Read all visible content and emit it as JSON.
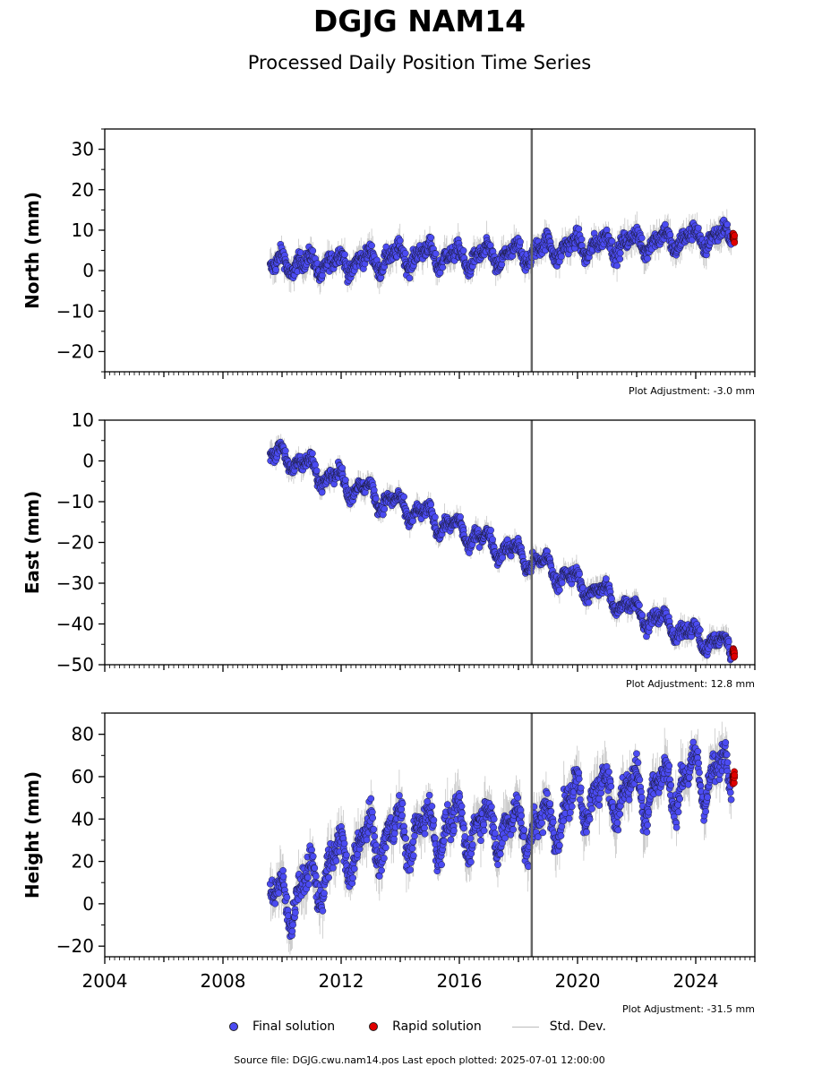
{
  "title": "DGJG NAM14",
  "subtitle": "Processed Daily Position Time Series",
  "colors": {
    "final": "#4b4bf2",
    "rapid": "#e00000",
    "std": "#bbbbbb",
    "event_line": "#666666"
  },
  "legend": {
    "final": "Final solution",
    "rapid": "Rapid solution",
    "std": "Std. Dev."
  },
  "footer": "Source file: DGJG.cwu.nam14.pos  Last epoch plotted: 2025-07-01 12:00:00",
  "chart_data": [
    {
      "type": "scatter",
      "ylabel": "North (mm)",
      "ylim": [
        -25,
        35
      ],
      "yticks": [
        -20,
        -10,
        0,
        10,
        20,
        30
      ],
      "xlim": [
        2004,
        2026
      ],
      "xticks": [
        2004,
        2008,
        2012,
        2016,
        2020,
        2024
      ],
      "show_xtick_labels": false,
      "adjustment": "Plot Adjustment: -3.0 mm",
      "event_line_x": 2018.45,
      "series": [
        {
          "name": "Final solution",
          "x": [
            2009.6,
            2010,
            2011,
            2012,
            2013,
            2014,
            2015,
            2016,
            2017,
            2018,
            2019,
            2020,
            2021,
            2022,
            2023,
            2024,
            2025.2
          ],
          "y": [
            0,
            2,
            1.5,
            2,
            2.5,
            3.5,
            4,
            3,
            3.5,
            4,
            5.5,
            6,
            6.5,
            7,
            7.5,
            8,
            8.5
          ]
        },
        {
          "name": "Rapid solution",
          "x": [
            2025.25,
            2025.5
          ],
          "y": [
            8.5,
            8
          ]
        }
      ]
    },
    {
      "type": "scatter",
      "ylabel": "East (mm)",
      "ylim": [
        -50,
        10
      ],
      "yticks": [
        -50,
        -40,
        -30,
        -20,
        -10,
        0,
        10
      ],
      "xlim": [
        2004,
        2026
      ],
      "xticks": [
        2004,
        2008,
        2012,
        2016,
        2020,
        2024
      ],
      "show_xtick_labels": false,
      "adjustment": "Plot Adjustment: 12.8 mm",
      "event_line_x": 2018.45,
      "series": [
        {
          "name": "Final solution",
          "x": [
            2009.6,
            2010,
            2011,
            2012,
            2013,
            2014,
            2015,
            2016,
            2017,
            2018,
            2019,
            2020,
            2021,
            2022,
            2023,
            2024,
            2025.2
          ],
          "y": [
            1,
            1.5,
            -2,
            -5,
            -8,
            -11,
            -14,
            -17,
            -20,
            -23,
            -26,
            -30,
            -33,
            -37,
            -40,
            -43,
            -46
          ]
        },
        {
          "name": "Rapid solution",
          "x": [
            2025.25,
            2025.5
          ],
          "y": [
            -46.5,
            -47.5
          ]
        }
      ]
    },
    {
      "type": "scatter",
      "ylabel": "Height (mm)",
      "ylim": [
        -25,
        90
      ],
      "yticks": [
        -20,
        0,
        20,
        40,
        60,
        80
      ],
      "xlim": [
        2004,
        2026
      ],
      "xticks": [
        2004,
        2008,
        2012,
        2016,
        2020,
        2024
      ],
      "xtick_labels": [
        "2004",
        "2008",
        "2012",
        "2016",
        "2020",
        "2024"
      ],
      "show_xtick_labels": true,
      "adjustment": "Plot Adjustment: -31.5 mm",
      "event_line_x": 2018.45,
      "series": [
        {
          "name": "Final solution",
          "x": [
            2009.6,
            2010,
            2011,
            2012,
            2013,
            2014,
            2015,
            2016,
            2017,
            2018,
            2019,
            2020,
            2021,
            2022,
            2023,
            2024,
            2025.2
          ],
          "y": [
            5,
            0,
            10,
            22,
            30,
            34,
            35,
            36,
            37,
            36,
            37,
            50,
            52,
            53,
            55,
            60,
            62
          ]
        },
        {
          "name": "Rapid solution",
          "x": [
            2025.25,
            2025.5
          ],
          "y": [
            58,
            60
          ]
        }
      ]
    }
  ]
}
